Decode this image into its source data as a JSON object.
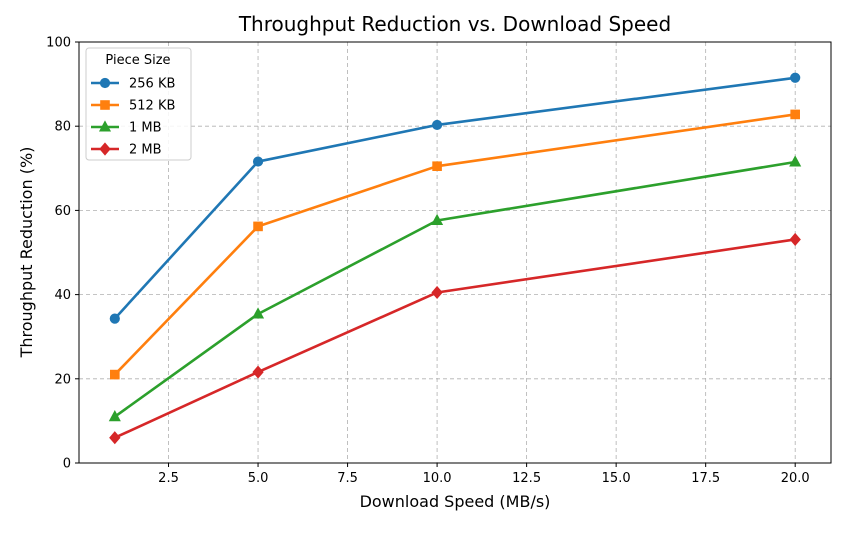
{
  "chart_data": {
    "type": "line",
    "title": "Throughput Reduction vs. Download Speed",
    "xlabel": "Download Speed (MB/s)",
    "ylabel": "Throughput Reduction (%)",
    "xlim": [
      0,
      21
    ],
    "ylim": [
      0,
      100
    ],
    "xticks": [
      2.5,
      5.0,
      7.5,
      10.0,
      12.5,
      15.0,
      17.5,
      20.0
    ],
    "xtick_labels": [
      "2.5",
      "5.0",
      "7.5",
      "10.0",
      "12.5",
      "15.0",
      "17.5",
      "20.0"
    ],
    "yticks": [
      0,
      20,
      40,
      60,
      80,
      100
    ],
    "ytick_labels": [
      "0",
      "20",
      "40",
      "60",
      "80",
      "100"
    ],
    "grid": true,
    "legend": {
      "title": "Piece Size",
      "placement": "top-left"
    },
    "x": [
      1,
      5,
      10,
      20
    ],
    "series": [
      {
        "name": "256 KB",
        "values": [
          34.3,
          71.6,
          80.3,
          91.5
        ],
        "color": "#1f77b4",
        "marker": "circle"
      },
      {
        "name": "512 KB",
        "values": [
          21.0,
          56.2,
          70.5,
          82.8
        ],
        "color": "#ff7f0e",
        "marker": "square"
      },
      {
        "name": "1 MB",
        "values": [
          11.0,
          35.4,
          57.6,
          71.5
        ],
        "color": "#2ca02c",
        "marker": "triangle"
      },
      {
        "name": "2 MB",
        "values": [
          6.0,
          21.6,
          40.5,
          53.1
        ],
        "color": "#d62728",
        "marker": "diamond"
      }
    ]
  }
}
